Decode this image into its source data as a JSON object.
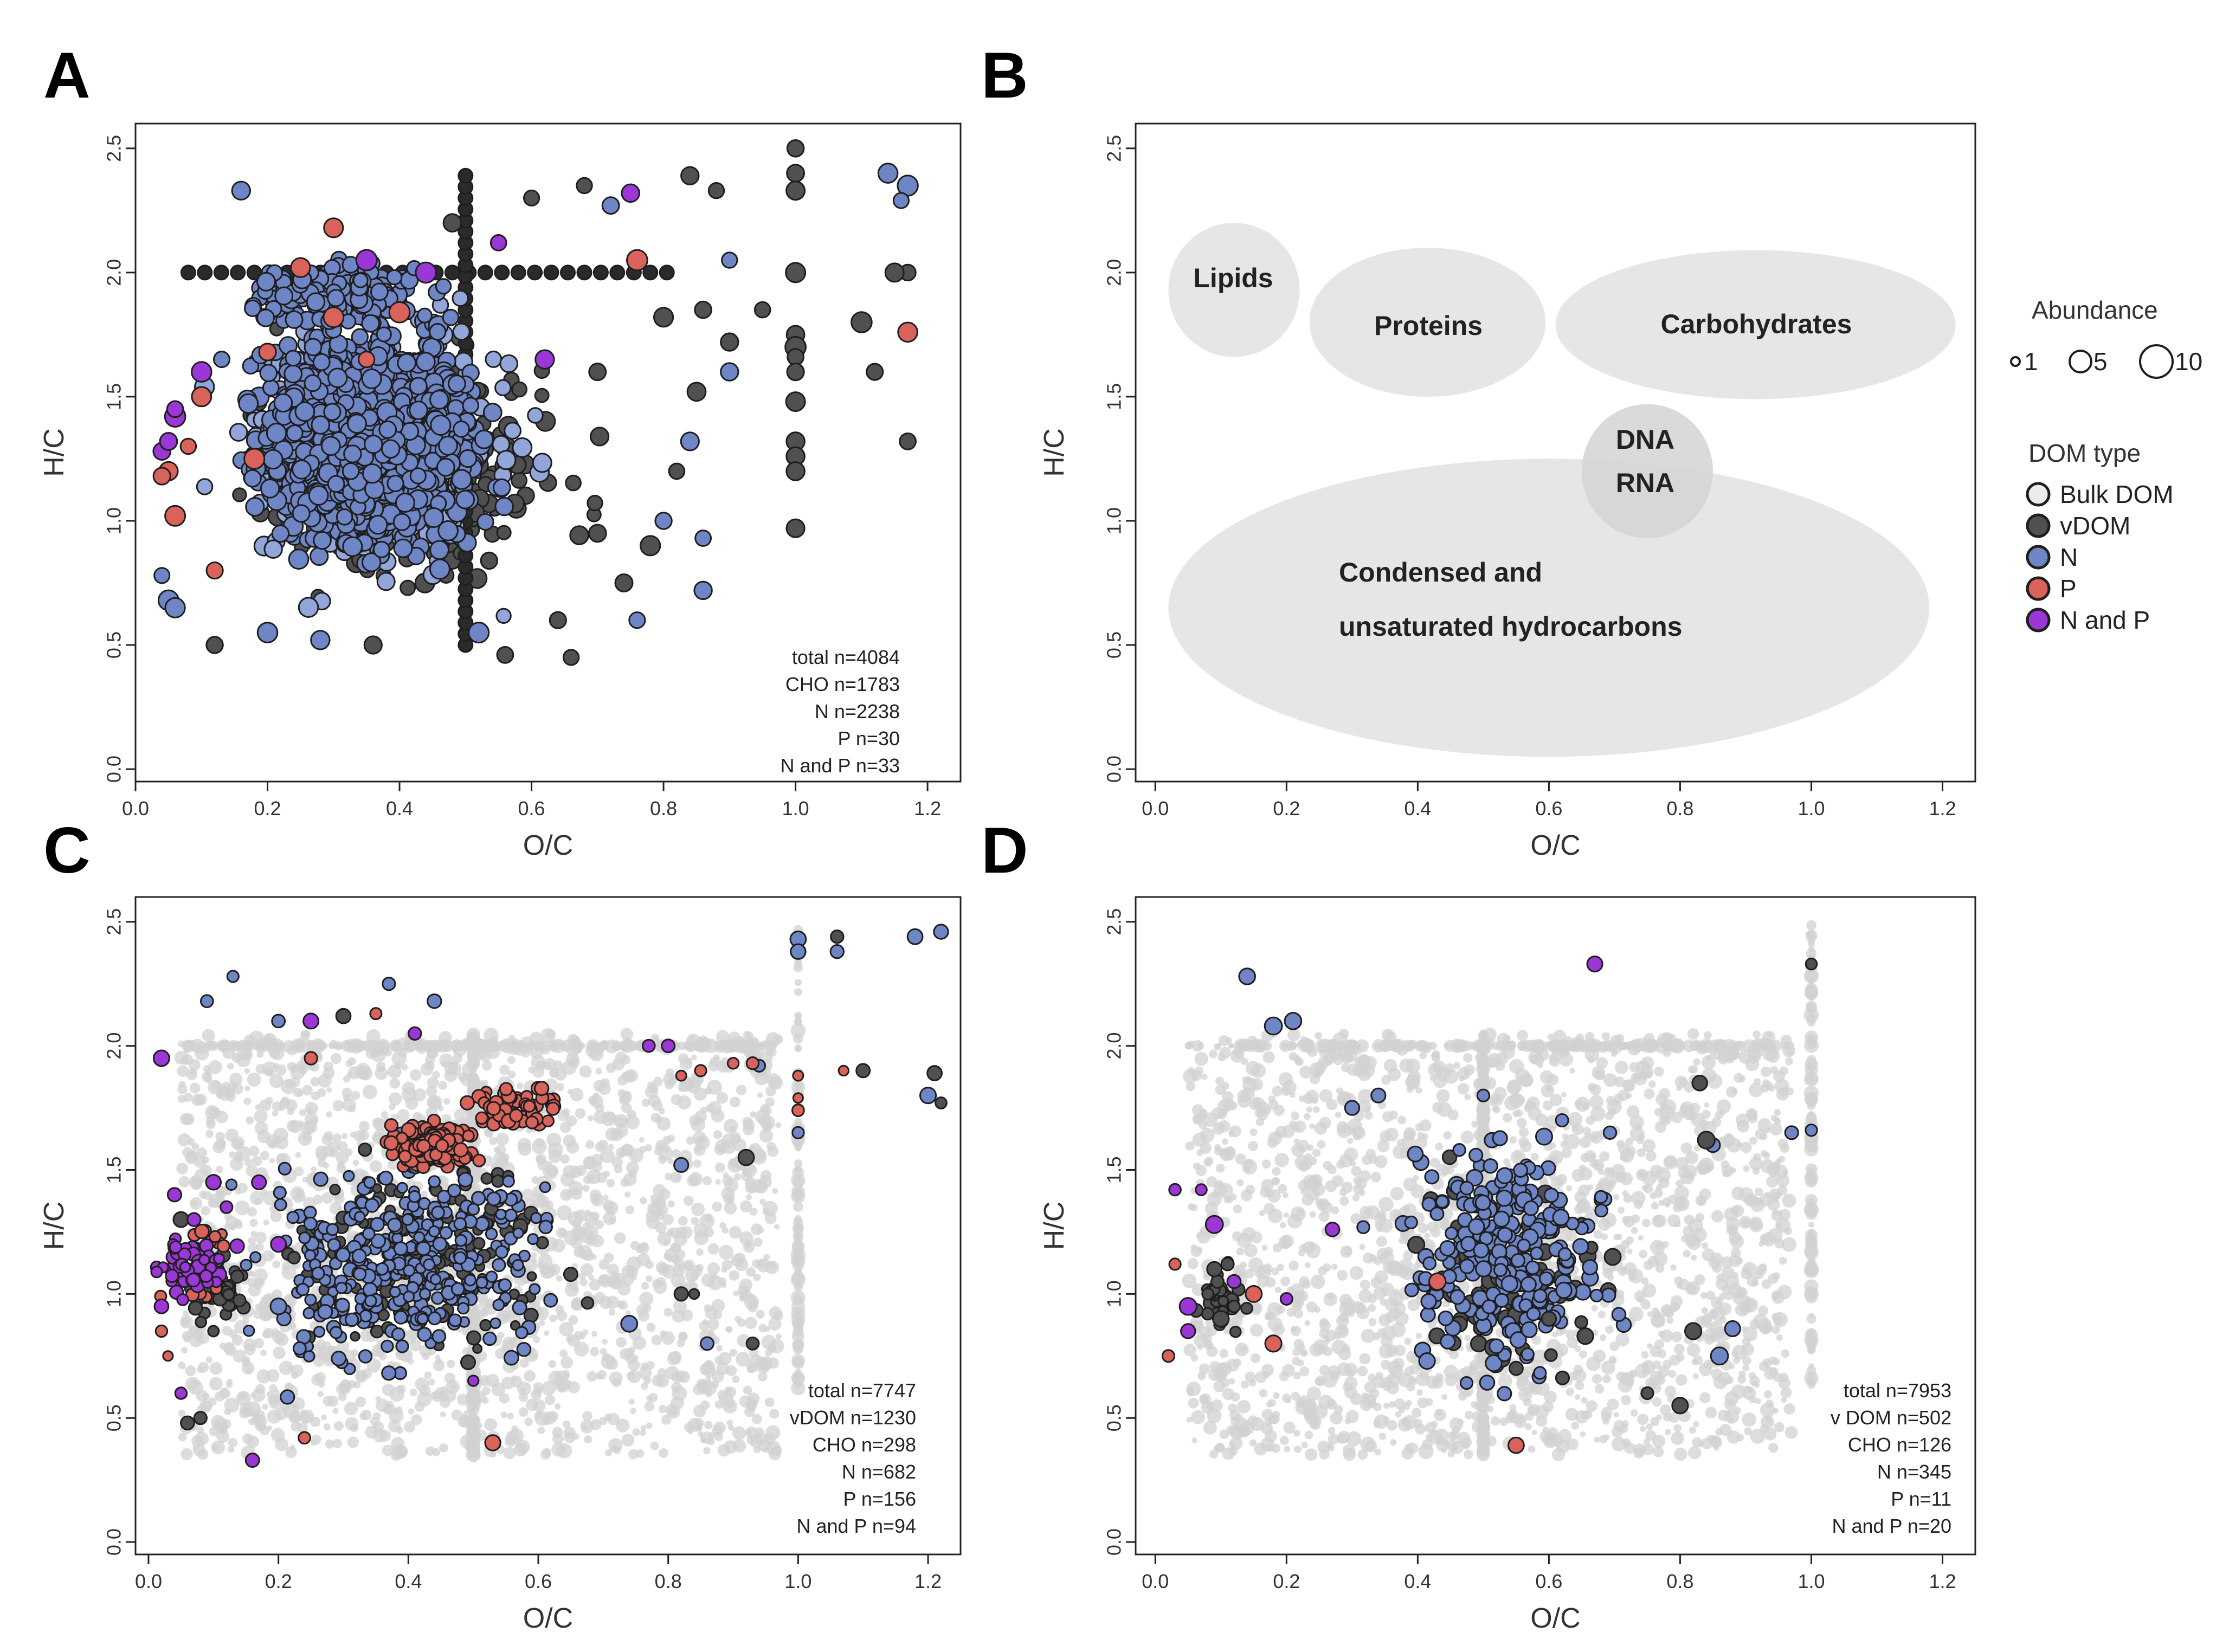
{
  "colors": {
    "bulk": "#d2d2d2",
    "vdom": "#505050",
    "n": "#6f86c6",
    "n_light": "#93a6da",
    "p": "#d9625b",
    "np": "#9b37d6",
    "region": "#e6e6e6",
    "outline": "#1e1e1e"
  },
  "legend": {
    "abundance_title": "Abundance",
    "abundance_items": [
      {
        "label": "1",
        "value": 1
      },
      {
        "label": "5",
        "value": 5
      },
      {
        "label": "10",
        "value": 10
      }
    ],
    "dom_title": "DOM type",
    "dom_items": [
      {
        "label": "Bulk DOM",
        "color": "#ececec"
      },
      {
        "label": "vDOM",
        "color": "#505050"
      },
      {
        "label": "N",
        "color": "#6f86c6"
      },
      {
        "label": "P",
        "color": "#d9625b"
      },
      {
        "label": "N and P",
        "color": "#9b37d6"
      }
    ]
  },
  "chart_data": [
    {
      "panel": "A",
      "type": "scatter",
      "xlabel": "O/C",
      "ylabel": "H/C",
      "xlim": [
        0,
        1.25
      ],
      "ylim": [
        -0.05,
        2.6
      ],
      "xticks": [
        "0.0",
        "0.2",
        "0.4",
        "0.6",
        "0.8",
        "1.0",
        "1.2"
      ],
      "yticks": [
        "0.0",
        "0.5",
        "1.0",
        "1.5",
        "2.0",
        "2.5"
      ],
      "counts": [
        "total n=4084",
        "CHO n=1783",
        "N n=2238",
        "P n=30",
        "N and P n=33"
      ],
      "series": [
        {
          "name": "vDOM",
          "points": [
            [
              1.0,
              2.5
            ],
            [
              1.0,
              2.4
            ],
            [
              1.0,
              2.33
            ],
            [
              1.0,
              2.0
            ],
            [
              1.0,
              1.75
            ],
            [
              1.0,
              1.7
            ],
            [
              1.0,
              1.66
            ],
            [
              1.0,
              1.6
            ],
            [
              1.0,
              1.48
            ],
            [
              1.0,
              1.32
            ],
            [
              1.0,
              1.26
            ],
            [
              1.0,
              1.2
            ],
            [
              1.0,
              0.97
            ],
            [
              1.17,
              2.0
            ],
            [
              1.17,
              1.32
            ],
            [
              1.15,
              2.0
            ],
            [
              1.12,
              1.6
            ],
            [
              1.1,
              1.8
            ],
            [
              0.84,
              2.39
            ],
            [
              0.88,
              2.33
            ],
            [
              0.68,
              2.35
            ],
            [
              0.48,
              2.2
            ],
            [
              0.95,
              1.85
            ],
            [
              0.9,
              1.72
            ],
            [
              0.86,
              1.85
            ],
            [
              0.8,
              1.82
            ],
            [
              0.85,
              1.52
            ],
            [
              0.82,
              1.2
            ],
            [
              0.78,
              0.9
            ],
            [
              0.74,
              0.75
            ],
            [
              0.66,
              0.45
            ],
            [
              0.56,
              0.46
            ],
            [
              0.12,
              0.5
            ],
            [
              0.36,
              0.5
            ],
            [
              0.6,
              2.3
            ],
            [
              0.64,
              0.6
            ],
            [
              0.7,
              0.95
            ],
            [
              0.7,
              1.6
            ]
          ]
        },
        {
          "name": "N",
          "points": [
            [
              1.17,
              2.35
            ],
            [
              1.16,
              2.29
            ],
            [
              1.14,
              2.4
            ],
            [
              0.16,
              2.33
            ],
            [
              0.9,
              2.05
            ],
            [
              0.72,
              2.27
            ],
            [
              0.84,
              1.32
            ],
            [
              0.86,
              0.93
            ],
            [
              0.86,
              0.72
            ],
            [
              0.04,
              0.78
            ],
            [
              0.05,
              0.68
            ],
            [
              0.06,
              0.65
            ],
            [
              0.9,
              1.6
            ],
            [
              0.8,
              1.0
            ],
            [
              0.76,
              0.6
            ],
            [
              0.52,
              0.55
            ],
            [
              0.2,
              0.55
            ],
            [
              0.28,
              0.52
            ]
          ]
        },
        {
          "name": "P",
          "points": [
            [
              0.76,
              2.05
            ],
            [
              1.17,
              1.76
            ],
            [
              0.3,
              2.18
            ],
            [
              0.25,
              2.02
            ],
            [
              0.2,
              1.68
            ],
            [
              0.3,
              1.82
            ],
            [
              0.35,
              1.65
            ],
            [
              0.1,
              1.5
            ],
            [
              0.05,
              1.2
            ],
            [
              0.08,
              1.3
            ],
            [
              0.06,
              1.02
            ],
            [
              0.04,
              1.18
            ],
            [
              0.18,
              1.25
            ],
            [
              0.4,
              1.84
            ],
            [
              0.12,
              0.8
            ]
          ]
        },
        {
          "name": "N and P",
          "points": [
            [
              0.75,
              2.32
            ],
            [
              0.55,
              2.12
            ],
            [
              0.04,
              1.28
            ],
            [
              0.05,
              1.32
            ],
            [
              0.06,
              1.42
            ],
            [
              0.06,
              1.45
            ],
            [
              0.1,
              1.6
            ],
            [
              0.62,
              1.65
            ],
            [
              0.44,
              2.0
            ],
            [
              0.35,
              2.05
            ]
          ]
        }
      ]
    },
    {
      "panel": "B",
      "type": "regions",
      "xlabel": "O/C",
      "ylabel": "H/C",
      "xlim": [
        -0.03,
        1.25
      ],
      "ylim": [
        -0.05,
        2.6
      ],
      "xticks": [
        "0.0",
        "0.2",
        "0.4",
        "0.6",
        "0.8",
        "1.0",
        "1.2"
      ],
      "yticks": [
        "0.0",
        "0.5",
        "1.0",
        "1.5",
        "2.0",
        "2.5"
      ],
      "regions": [
        {
          "name": "Lipids",
          "cx": 0.12,
          "cy": 1.93,
          "rx": 0.1,
          "ry": 0.27
        },
        {
          "name": "Proteins",
          "cx": 0.415,
          "cy": 1.8,
          "rx": 0.18,
          "ry": 0.3
        },
        {
          "name": "Carbohydrates",
          "cx": 0.915,
          "cy": 1.79,
          "rx": 0.305,
          "ry": 0.3
        },
        {
          "name": "DNA/RNA",
          "cx": 0.75,
          "cy": 1.2,
          "rx": 0.1,
          "ry": 0.27
        },
        {
          "name": "Condensed and unsaturated hydrocarbons",
          "cx": 0.6,
          "cy": 0.65,
          "rx": 0.58,
          "ry": 0.6
        }
      ],
      "labels": {
        "lipids": "Lipids",
        "proteins": "Proteins",
        "carbohydrates": "Carbohydrates",
        "dna": "DNA",
        "rna": "RNA",
        "condensed_1": "Condensed and",
        "condensed_2": "unsaturated hydrocarbons"
      }
    },
    {
      "panel": "C",
      "type": "scatter",
      "xlabel": "O/C",
      "ylabel": "H/C",
      "xlim": [
        -0.02,
        1.25
      ],
      "ylim": [
        -0.05,
        2.6
      ],
      "xticks": [
        "0.0",
        "0.2",
        "0.4",
        "0.6",
        "0.8",
        "1.0",
        "1.2"
      ],
      "yticks": [
        "0.0",
        "0.5",
        "1.0",
        "1.5",
        "2.0",
        "2.5"
      ],
      "counts": [
        "total n=7747",
        "vDOM n=1230",
        "CHO n=298",
        "N n=682",
        "P n=156",
        "N and P n=94"
      ],
      "series": [
        {
          "name": "N",
          "points": [
            [
              1.22,
              2.46
            ],
            [
              1.18,
              2.44
            ],
            [
              1.0,
              2.43
            ],
            [
              1.0,
              2.38
            ],
            [
              1.06,
              2.38
            ],
            [
              0.13,
              2.28
            ],
            [
              0.09,
              2.18
            ],
            [
              0.37,
              2.25
            ],
            [
              0.44,
              2.18
            ],
            [
              0.2,
              2.1
            ],
            [
              0.94,
              1.92
            ],
            [
              1.2,
              1.8
            ],
            [
              0.82,
              1.52
            ],
            [
              1.0,
              1.65
            ],
            [
              0.74,
              0.88
            ],
            [
              0.86,
              0.8
            ],
            [
              0.2,
              0.95
            ]
          ]
        },
        {
          "name": "vDOM",
          "points": [
            [
              1.22,
              1.77
            ],
            [
              1.21,
              1.89
            ],
            [
              1.1,
              1.9
            ],
            [
              0.92,
              1.55
            ],
            [
              0.93,
              0.8
            ],
            [
              0.82,
              1.0
            ],
            [
              0.84,
              1.0
            ],
            [
              0.06,
              0.48
            ],
            [
              0.08,
              0.5
            ],
            [
              1.06,
              2.44
            ],
            [
              0.3,
              2.12
            ],
            [
              0.05,
              1.3
            ],
            [
              0.1,
              0.85
            ]
          ]
        },
        {
          "name": "P",
          "points": [
            [
              0.93,
              1.93
            ],
            [
              0.9,
              1.93
            ],
            [
              0.85,
              1.9
            ],
            [
              0.82,
              1.88
            ],
            [
              1.0,
              1.88
            ],
            [
              1.0,
              1.79
            ],
            [
              1.0,
              1.74
            ],
            [
              1.07,
              1.9
            ],
            [
              0.02,
              0.85
            ],
            [
              0.03,
              0.75
            ],
            [
              0.35,
              2.13
            ],
            [
              0.25,
              1.95
            ],
            [
              0.24,
              0.42
            ],
            [
              0.53,
              0.4
            ]
          ]
        },
        {
          "name": "N and P",
          "points": [
            [
              0.02,
              1.95
            ],
            [
              0.04,
              1.4
            ],
            [
              0.07,
              1.3
            ],
            [
              0.1,
              1.45
            ],
            [
              0.12,
              1.35
            ],
            [
              0.02,
              0.95
            ],
            [
              0.05,
              0.6
            ],
            [
              0.5,
              0.65
            ],
            [
              0.16,
              0.33
            ],
            [
              0.25,
              2.1
            ],
            [
              0.41,
              2.05
            ],
            [
              0.77,
              2.0
            ],
            [
              0.8,
              2.0
            ],
            [
              0.2,
              1.2
            ],
            [
              0.17,
              1.45
            ]
          ]
        }
      ]
    },
    {
      "panel": "D",
      "type": "scatter",
      "xlabel": "O/C",
      "ylabel": "H/C",
      "xlim": [
        -0.03,
        1.25
      ],
      "ylim": [
        -0.05,
        2.6
      ],
      "xticks": [
        "0.0",
        "0.2",
        "0.4",
        "0.6",
        "0.8",
        "1.0",
        "1.2"
      ],
      "yticks": [
        "0.0",
        "0.5",
        "1.0",
        "1.5",
        "2.0",
        "2.5"
      ],
      "counts": [
        "total n=7953",
        "v DOM n=502",
        "CHO n=126",
        "N n=345",
        "P n=11",
        "N and P n=20"
      ],
      "series": [
        {
          "name": "N",
          "points": [
            [
              0.14,
              2.28
            ],
            [
              0.21,
              2.1
            ],
            [
              0.18,
              2.08
            ],
            [
              0.97,
              1.65
            ],
            [
              1.0,
              1.66
            ],
            [
              0.85,
              1.6
            ],
            [
              0.88,
              0.86
            ],
            [
              0.86,
              0.75
            ],
            [
              0.34,
              1.8
            ],
            [
              0.3,
              1.75
            ],
            [
              0.5,
              1.8
            ],
            [
              0.62,
              1.7
            ]
          ]
        },
        {
          "name": "vDOM",
          "points": [
            [
              1.0,
              2.33
            ],
            [
              0.83,
              1.85
            ],
            [
              0.84,
              1.62
            ],
            [
              0.82,
              0.85
            ],
            [
              0.8,
              0.55
            ],
            [
              0.75,
              0.6
            ],
            [
              0.08,
              1.0
            ],
            [
              0.09,
              1.1
            ],
            [
              0.1,
              0.9
            ],
            [
              0.12,
              0.95
            ],
            [
              0.55,
              0.7
            ],
            [
              0.6,
              0.9
            ]
          ]
        },
        {
          "name": "P",
          "points": [
            [
              0.55,
              0.39
            ],
            [
              0.03,
              1.12
            ],
            [
              0.02,
              0.75
            ],
            [
              0.18,
              0.8
            ],
            [
              0.43,
              1.05
            ],
            [
              0.15,
              1.0
            ]
          ]
        },
        {
          "name": "N and P",
          "points": [
            [
              0.67,
              2.33
            ],
            [
              0.03,
              1.42
            ],
            [
              0.07,
              1.42
            ],
            [
              0.09,
              1.28
            ],
            [
              0.27,
              1.26
            ],
            [
              0.05,
              0.95
            ],
            [
              0.05,
              0.85
            ],
            [
              0.2,
              0.98
            ],
            [
              0.12,
              1.05
            ]
          ]
        }
      ]
    }
  ]
}
